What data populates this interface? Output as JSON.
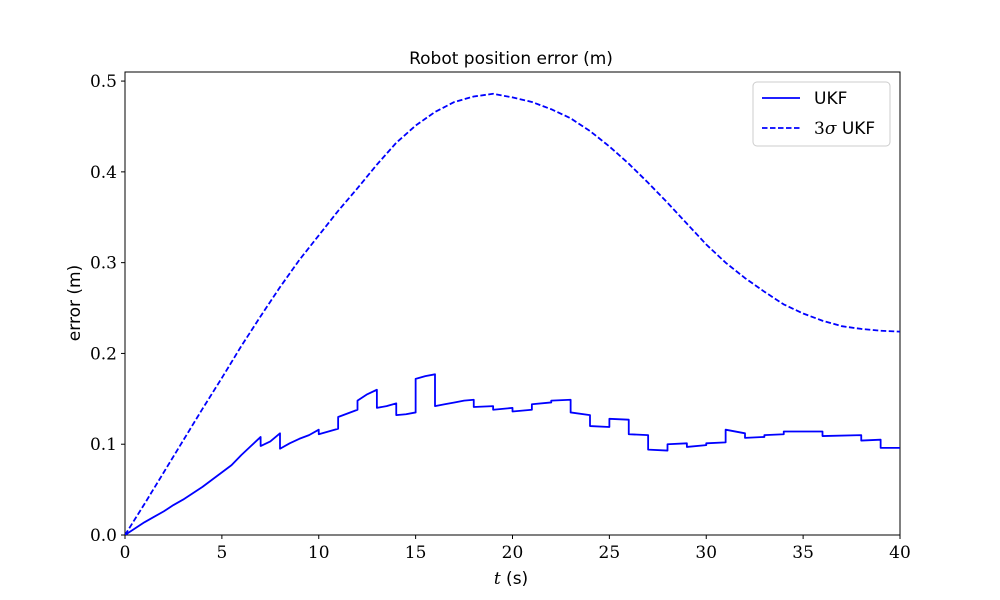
{
  "chart_data": {
    "type": "line",
    "title": "Robot position error (m)",
    "xlabel_italic": "t",
    "xlabel_rest": " (s)",
    "ylabel": "error (m)",
    "xlim": [
      0,
      40
    ],
    "ylim": [
      0,
      0.51
    ],
    "xticks": [
      0,
      5,
      10,
      15,
      20,
      25,
      30,
      35,
      40
    ],
    "yticks": [
      0.0,
      0.1,
      0.2,
      0.3,
      0.4,
      0.5
    ],
    "grid": false,
    "legend_position": "top-right",
    "series": [
      {
        "name": "UKF",
        "style": "solid",
        "color": "#0000ff",
        "points": [
          [
            0,
            0
          ],
          [
            0.5,
            0.007
          ],
          [
            1,
            0.014
          ],
          [
            1.5,
            0.02
          ],
          [
            2,
            0.026
          ],
          [
            2.5,
            0.033
          ],
          [
            3,
            0.039
          ],
          [
            3.5,
            0.046
          ],
          [
            4,
            0.053
          ],
          [
            4.5,
            0.061
          ],
          [
            5,
            0.069
          ],
          [
            5.5,
            0.077
          ],
          [
            6,
            0.088
          ],
          [
            6.5,
            0.098
          ],
          [
            7,
            0.108
          ],
          [
            7,
            0.098
          ],
          [
            7.5,
            0.103
          ],
          [
            8,
            0.112
          ],
          [
            8,
            0.095
          ],
          [
            8.5,
            0.101
          ],
          [
            9,
            0.106
          ],
          [
            9.5,
            0.11
          ],
          [
            10,
            0.116
          ],
          [
            10,
            0.111
          ],
          [
            11,
            0.117
          ],
          [
            11,
            0.13
          ],
          [
            11.5,
            0.134
          ],
          [
            12,
            0.138
          ],
          [
            12,
            0.148
          ],
          [
            12.5,
            0.155
          ],
          [
            13,
            0.16
          ],
          [
            13,
            0.14
          ],
          [
            13.5,
            0.142
          ],
          [
            14,
            0.145
          ],
          [
            14,
            0.132
          ],
          [
            14.5,
            0.133
          ],
          [
            15,
            0.135
          ],
          [
            15,
            0.172
          ],
          [
            15.5,
            0.175
          ],
          [
            16,
            0.177
          ],
          [
            16,
            0.142
          ],
          [
            16.5,
            0.144
          ],
          [
            17,
            0.146
          ],
          [
            17.5,
            0.148
          ],
          [
            18,
            0.149
          ],
          [
            18,
            0.141
          ],
          [
            19,
            0.142
          ],
          [
            19,
            0.138
          ],
          [
            20,
            0.14
          ],
          [
            20,
            0.136
          ],
          [
            21,
            0.138
          ],
          [
            21,
            0.144
          ],
          [
            22,
            0.146
          ],
          [
            22,
            0.148
          ],
          [
            23,
            0.149
          ],
          [
            23,
            0.135
          ],
          [
            24,
            0.132
          ],
          [
            24,
            0.12
          ],
          [
            25,
            0.119
          ],
          [
            25,
            0.128
          ],
          [
            26,
            0.127
          ],
          [
            26,
            0.111
          ],
          [
            27,
            0.11
          ],
          [
            27,
            0.094
          ],
          [
            28,
            0.093
          ],
          [
            28,
            0.1
          ],
          [
            29,
            0.101
          ],
          [
            29,
            0.097
          ],
          [
            30,
            0.099
          ],
          [
            30,
            0.101
          ],
          [
            31,
            0.102
          ],
          [
            31,
            0.116
          ],
          [
            32,
            0.112
          ],
          [
            32,
            0.107
          ],
          [
            33,
            0.108
          ],
          [
            33,
            0.11
          ],
          [
            34,
            0.111
          ],
          [
            34,
            0.114
          ],
          [
            36,
            0.114
          ],
          [
            36,
            0.109
          ],
          [
            38,
            0.11
          ],
          [
            38,
            0.104
          ],
          [
            39,
            0.105
          ],
          [
            39,
            0.096
          ],
          [
            40,
            0.096
          ]
        ]
      },
      {
        "name": "3σ UKF",
        "style": "dashed",
        "color": "#0000ff",
        "points": [
          [
            0,
            0
          ],
          [
            1,
            0.034
          ],
          [
            2,
            0.069
          ],
          [
            3,
            0.104
          ],
          [
            4,
            0.139
          ],
          [
            5,
            0.173
          ],
          [
            6,
            0.208
          ],
          [
            7,
            0.241
          ],
          [
            8,
            0.273
          ],
          [
            9,
            0.303
          ],
          [
            10,
            0.33
          ],
          [
            11,
            0.357
          ],
          [
            12,
            0.382
          ],
          [
            13,
            0.408
          ],
          [
            14,
            0.432
          ],
          [
            15,
            0.451
          ],
          [
            16,
            0.466
          ],
          [
            17,
            0.477
          ],
          [
            18,
            0.483
          ],
          [
            19,
            0.486
          ],
          [
            20,
            0.482
          ],
          [
            21,
            0.477
          ],
          [
            22,
            0.469
          ],
          [
            23,
            0.459
          ],
          [
            24,
            0.445
          ],
          [
            25,
            0.428
          ],
          [
            26,
            0.409
          ],
          [
            27,
            0.388
          ],
          [
            28,
            0.366
          ],
          [
            29,
            0.343
          ],
          [
            30,
            0.32
          ],
          [
            31,
            0.3
          ],
          [
            32,
            0.283
          ],
          [
            33,
            0.268
          ],
          [
            34,
            0.254
          ],
          [
            35,
            0.244
          ],
          [
            36,
            0.236
          ],
          [
            37,
            0.23
          ],
          [
            38,
            0.227
          ],
          [
            39,
            0.225
          ],
          [
            40,
            0.224
          ]
        ]
      }
    ],
    "legend": {
      "entries": [
        {
          "label": "UKF"
        },
        {
          "label_math": "3",
          "label_sigma": "σ",
          "label_rest": " UKF"
        }
      ]
    }
  }
}
